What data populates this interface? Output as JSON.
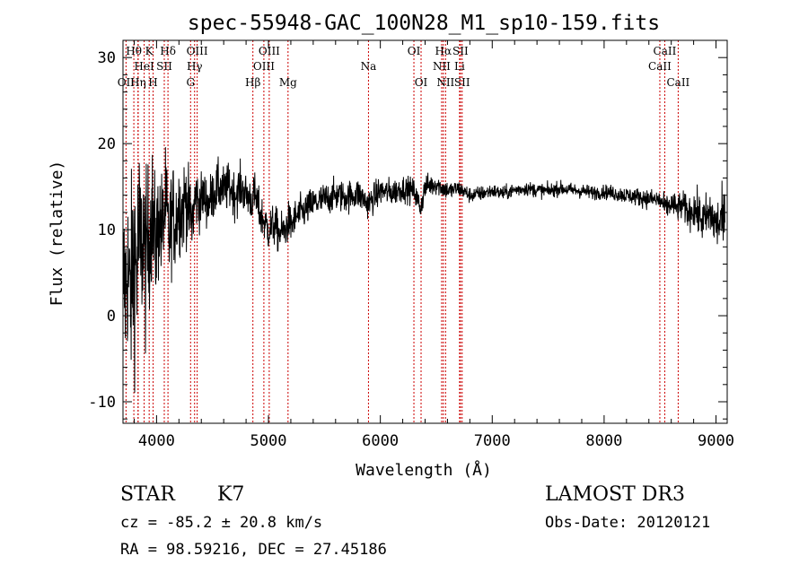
{
  "chart_data": {
    "type": "line",
    "title": "spec-55948-GAC_100N28_M1_sp10-159.fits",
    "xlabel": "Wavelength (Å)",
    "ylabel": "Flux (relative)",
    "xlim": [
      3700,
      9100
    ],
    "ylim": [
      -12.5,
      32
    ],
    "x_ticks": [
      4000,
      5000,
      6000,
      7000,
      8000,
      9000
    ],
    "y_ticks": [
      -10,
      0,
      10,
      20,
      30
    ],
    "grid": false,
    "series": [
      {
        "name": "flux",
        "anchors_x": [
          3700,
          3720,
          3740,
          3760,
          3780,
          3800,
          3820,
          3840,
          3860,
          3880,
          3900,
          3930,
          3960,
          3990,
          4020,
          4050,
          4080,
          4110,
          4140,
          4170,
          4200,
          4230,
          4260,
          4290,
          4320,
          4350,
          4380,
          4420,
          4460,
          4500,
          4550,
          4600,
          4650,
          4700,
          4750,
          4800,
          4850,
          4880,
          4920,
          4960,
          5000,
          5050,
          5100,
          5150,
          5180,
          5200,
          5250,
          5300,
          5350,
          5400,
          5500,
          5600,
          5700,
          5800,
          5890,
          6000,
          6100,
          6200,
          6300,
          6360,
          6400,
          6450,
          6500,
          6563,
          6620,
          6700,
          6800,
          6900,
          7000,
          7100,
          7200,
          7300,
          7400,
          7500,
          7600,
          7700,
          7800,
          7900,
          8000,
          8100,
          8200,
          8300,
          8400,
          8500,
          8550,
          8600,
          8650,
          8700,
          8750,
          8800,
          8850,
          8900,
          8950,
          9000,
          9050
        ],
        "anchors_y": [
          5,
          3,
          6,
          2,
          4,
          8,
          5,
          9,
          7,
          10,
          6,
          9,
          12,
          8,
          11,
          10,
          13,
          9,
          12,
          11,
          13,
          12,
          14,
          12,
          11,
          14,
          13,
          14,
          13,
          14,
          15,
          14.5,
          15,
          14,
          15,
          14,
          13.5,
          14,
          12,
          11,
          10,
          10.5,
          9.5,
          10,
          11,
          10.5,
          11.5,
          12,
          12.5,
          13,
          13.5,
          14,
          13.8,
          14.2,
          13,
          14.5,
          14.3,
          14.8,
          14.5,
          12.5,
          15,
          15.2,
          15.3,
          14.8,
          14.5,
          14.8,
          14,
          14.2,
          14.5,
          14.2,
          14.6,
          14.8,
          14.6,
          14.5,
          14.8,
          14.6,
          14.5,
          14.3,
          14.4,
          14.2,
          14.0,
          13.8,
          13.6,
          13.4,
          12.5,
          13,
          12.5,
          12.8,
          12,
          12.5,
          11.5,
          11,
          12,
          10.5,
          11
        ],
        "noise_x": [
          3700,
          3800,
          3900,
          4000,
          4200,
          4400,
          4800,
          5000,
          5400,
          5800,
          6400,
          6700,
          7000,
          8000,
          8400,
          8700,
          8900,
          9100
        ],
        "noise_y": [
          7,
          9,
          7,
          5,
          4,
          2.2,
          1.8,
          1.8,
          1.4,
          1.3,
          1.0,
          0.7,
          0.6,
          0.6,
          0.8,
          1.2,
          2,
          2.5
        ]
      }
    ],
    "lines": [
      {
        "name": "OII",
        "x": 3727,
        "row": 2
      },
      {
        "name": "H9",
        "x": 3835
      },
      {
        "name": "Hθ",
        "x": 3797,
        "row": 0
      },
      {
        "name": "Hη",
        "x": 3835,
        "row": 2
      },
      {
        "name": "K",
        "x": 3934,
        "row": 0
      },
      {
        "name": "H",
        "x": 3969,
        "row": 2
      },
      {
        "name": "HeI",
        "x": 3889,
        "row": 1
      },
      {
        "name": "SII",
        "x": 4069,
        "row": 1
      },
      {
        "name": "Hδ",
        "x": 4102,
        "row": 0
      },
      {
        "name": "OIII",
        "x": 4363,
        "row": 0
      },
      {
        "name": "Hγ",
        "x": 4340,
        "row": 1
      },
      {
        "name": "G",
        "x": 4304,
        "row": 2
      },
      {
        "name": "Hβ",
        "x": 4861,
        "row": 2
      },
      {
        "name": "OIII",
        "x": 4959,
        "row": 1
      },
      {
        "name": "OIII",
        "x": 5007,
        "row": 0
      },
      {
        "name": "Mg",
        "x": 5175,
        "row": 2
      },
      {
        "name": "Na",
        "x": 5894,
        "row": 1
      },
      {
        "name": "OI",
        "x": 6300,
        "row": 0
      },
      {
        "name": "OI",
        "x": 6364,
        "row": 2
      },
      {
        "name": "Hα",
        "x": 6563,
        "row": 0
      },
      {
        "name": "NII",
        "x": 6548,
        "row": 1
      },
      {
        "name": "NII",
        "x": 6583,
        "row": 2
      },
      {
        "name": "SII",
        "x": 6716,
        "row": 0
      },
      {
        "name": "Li",
        "x": 6708,
        "row": 1
      },
      {
        "name": "SII",
        "x": 6731,
        "row": 2
      },
      {
        "name": "CaII",
        "x": 8498,
        "row": 1
      },
      {
        "name": "CaII",
        "x": 8542,
        "row": 0
      },
      {
        "name": "CaII",
        "x": 8662,
        "row": 2
      }
    ]
  },
  "footer": {
    "class_label": "STAR",
    "subclass": "K7",
    "survey": "LAMOST DR3",
    "cz": "cz = -85.2 ± 20.8 km/s",
    "obs_date": "Obs-Date: 20120121",
    "radec": "RA =  98.59216, DEC =  27.45186"
  },
  "colors": {
    "line_marker": "#cc0000",
    "spectrum": "#000000"
  }
}
